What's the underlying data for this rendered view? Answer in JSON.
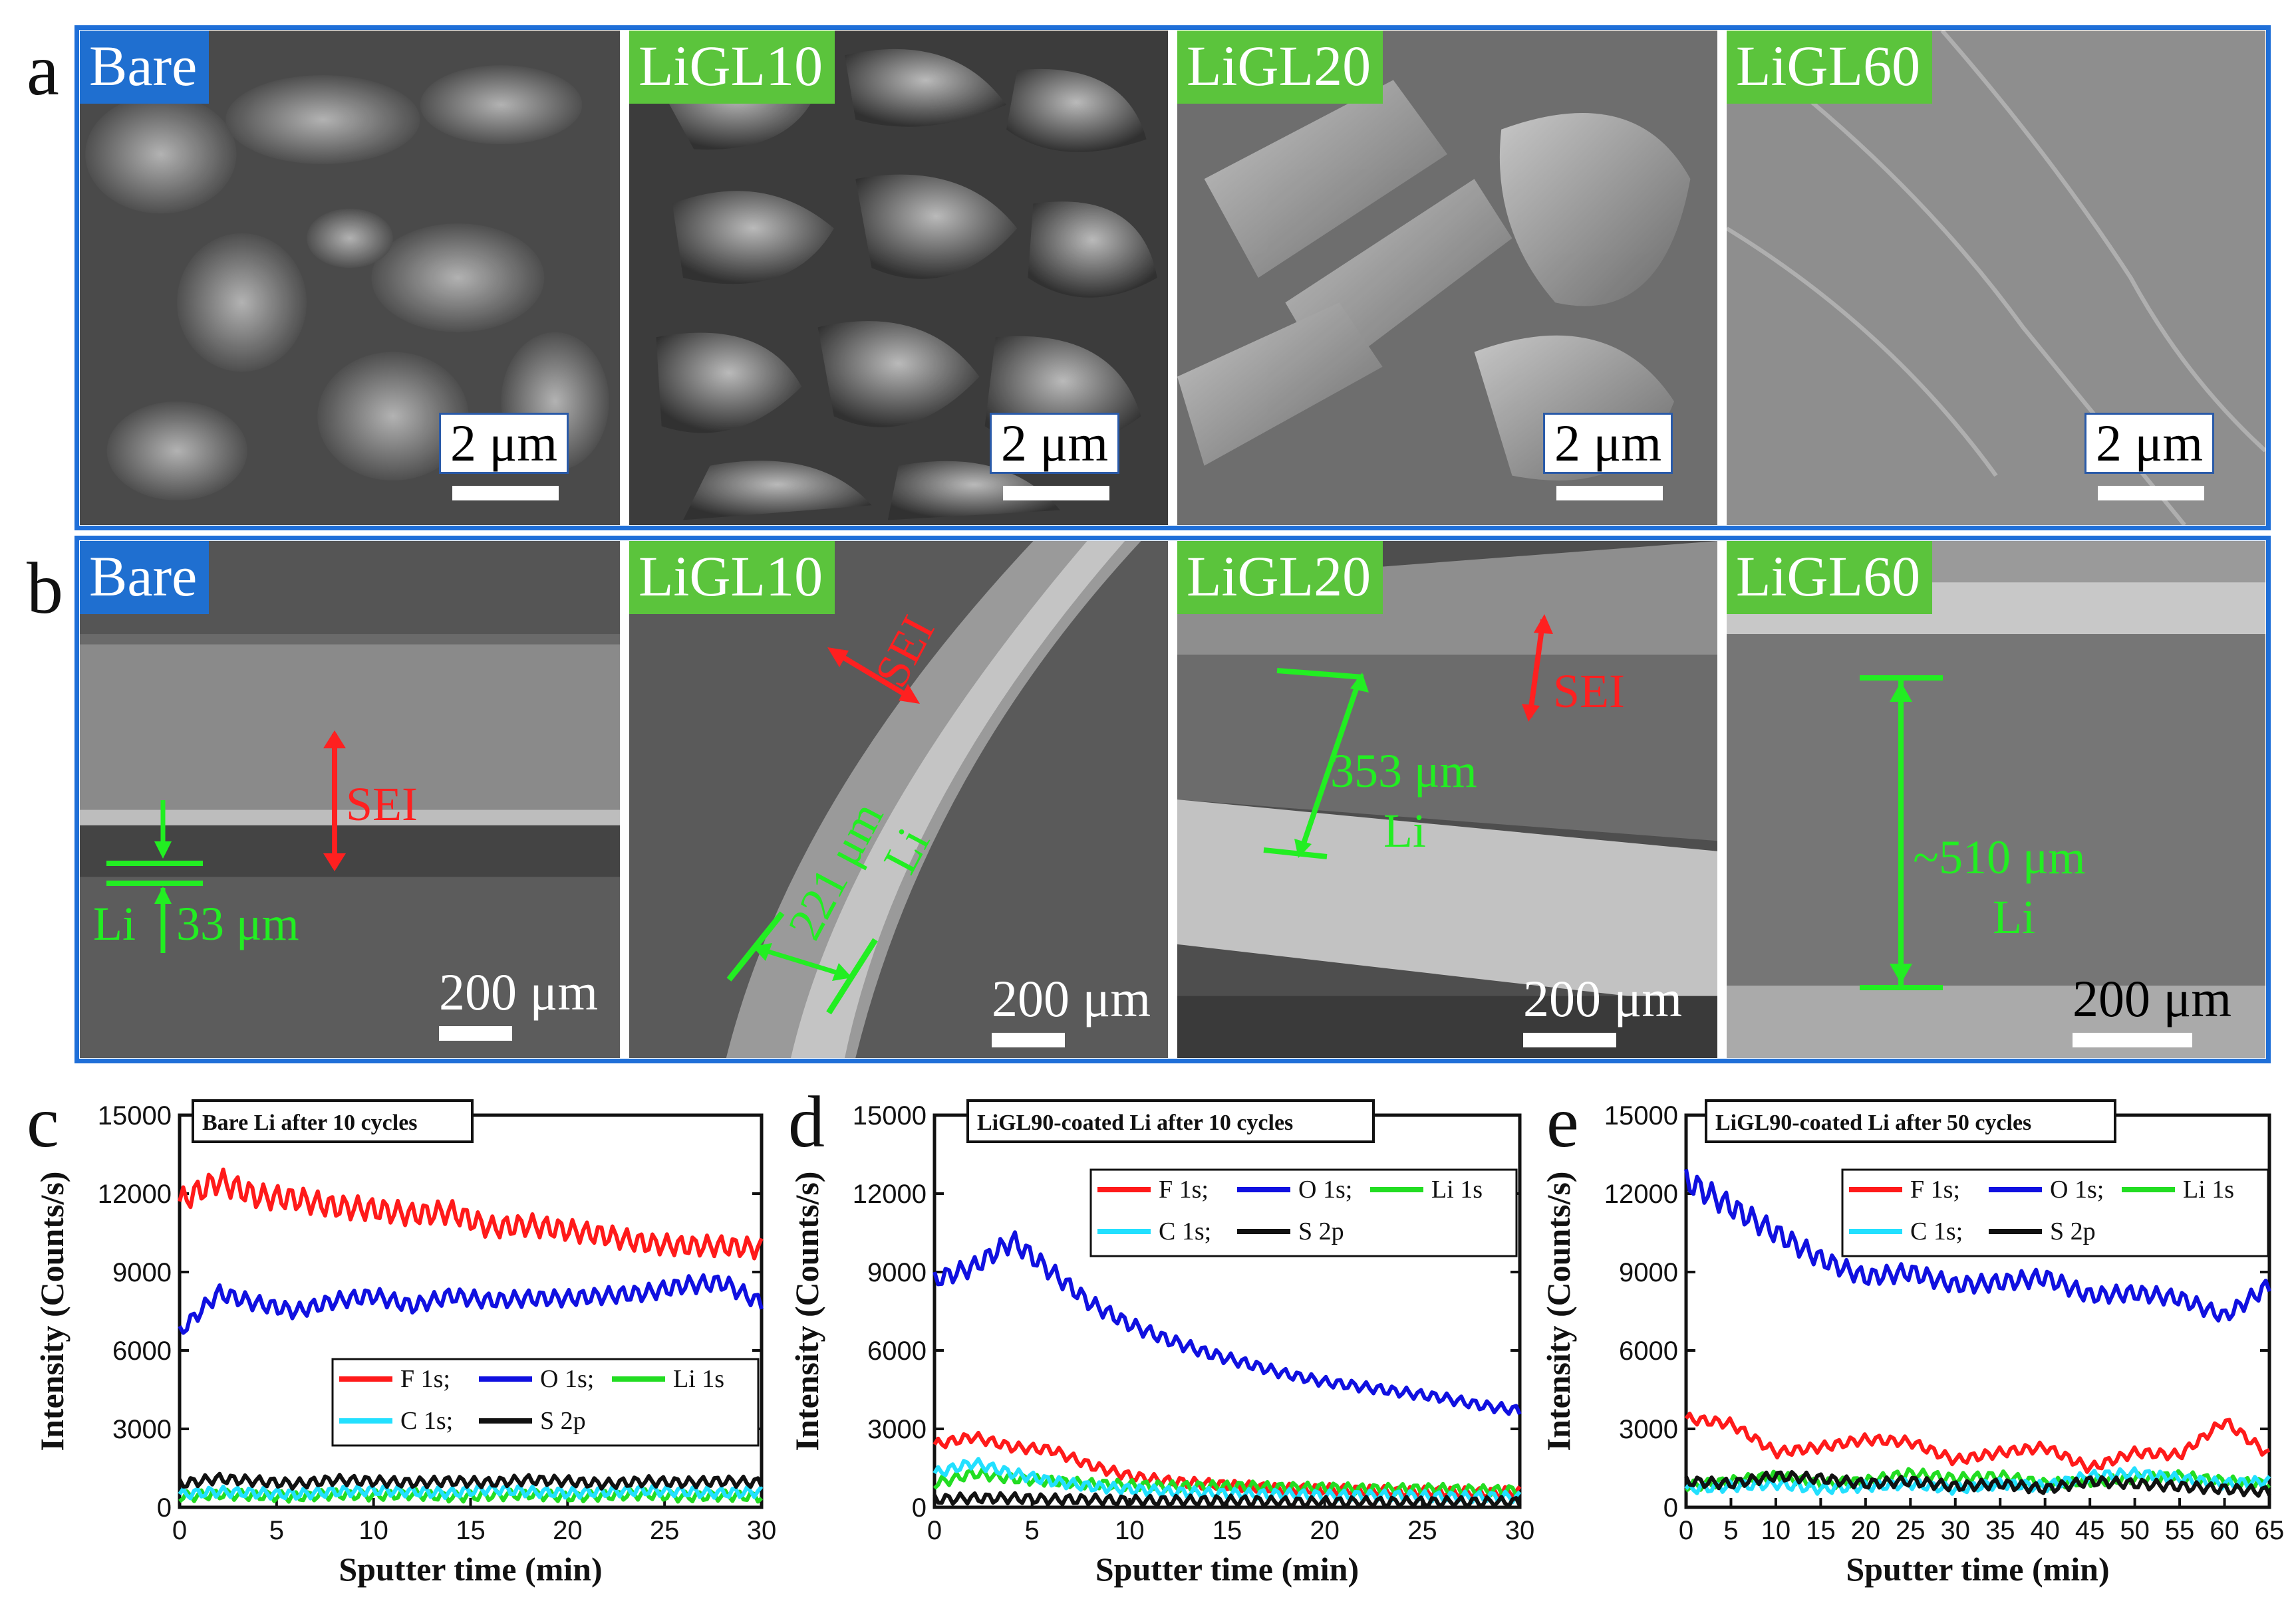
{
  "panels": {
    "a": {
      "letter": "a",
      "images": [
        {
          "tag": "Bare",
          "tag_color": "blue",
          "scale": "2 μm"
        },
        {
          "tag": "LiGL10",
          "tag_color": "green",
          "scale": "2 μm"
        },
        {
          "tag": "LiGL20",
          "tag_color": "green",
          "scale": "2 μm"
        },
        {
          "tag": "LiGL60",
          "tag_color": "green",
          "scale": "2 μm"
        }
      ]
    },
    "b": {
      "letter": "b",
      "images": [
        {
          "tag": "Bare",
          "tag_color": "blue",
          "scale": "200 μm",
          "annotations": [
            "SEI",
            "Li",
            "33 μm"
          ]
        },
        {
          "tag": "LiGL10",
          "tag_color": "green",
          "scale": "200 μm",
          "annotations": [
            "SEI",
            "221 μm",
            "Li"
          ]
        },
        {
          "tag": "LiGL20",
          "tag_color": "green",
          "scale": "200 μm",
          "annotations": [
            "SEI",
            "353 μm",
            "Li"
          ]
        },
        {
          "tag": "LiGL60",
          "tag_color": "green",
          "scale": "200 μm",
          "annotations": [
            "~510 μm",
            "Li"
          ]
        }
      ]
    }
  },
  "colors": {
    "frame": "#1f6fd8",
    "tag_blue": "#1f6fd0",
    "tag_green": "#5bc43c",
    "sei": "#ff2020",
    "li": "#22ee22",
    "F": "#ff1a1a",
    "O": "#1010e0",
    "Li": "#22dd22",
    "C": "#22e0ff",
    "S": "#111111"
  },
  "legend": {
    "entries": [
      "F 1s;",
      "O 1s;",
      "Li 1s",
      "C 1s;",
      "S 2p"
    ]
  },
  "chart_data": [
    {
      "letter": "c",
      "type": "line",
      "title": "Bare Li after 10 cycles",
      "xlabel": "Sputter time (min)",
      "ylabel": "Intensity (Counts/s)",
      "xlim": [
        0,
        30
      ],
      "ylim": [
        0,
        15000
      ],
      "xticks": [
        0,
        5,
        10,
        15,
        20,
        25,
        30
      ],
      "yticks": [
        0,
        3000,
        6000,
        9000,
        12000,
        15000
      ],
      "x": [
        0,
        2,
        4,
        6,
        8,
        10,
        12,
        14,
        16,
        18,
        20,
        22,
        24,
        26,
        28,
        30
      ],
      "series": [
        {
          "name": "F 1s",
          "values": [
            11700,
            12500,
            11900,
            11800,
            11500,
            11400,
            11200,
            11300,
            10700,
            10800,
            10600,
            10400,
            10100,
            10000,
            10000,
            9900
          ]
        },
        {
          "name": "O 1s",
          "values": [
            6700,
            8200,
            7800,
            7500,
            7900,
            8100,
            7700,
            8100,
            7900,
            8000,
            8000,
            8100,
            8200,
            8500,
            8600,
            7800
          ]
        },
        {
          "name": "Li 1s",
          "values": [
            400,
            500,
            450,
            400,
            500,
            450,
            500,
            400,
            450,
            500,
            400,
            450,
            500,
            400,
            450,
            400
          ]
        },
        {
          "name": "C 1s",
          "values": [
            500,
            600,
            550,
            500,
            600,
            650,
            600,
            550,
            700,
            600,
            550,
            600,
            650,
            600,
            550,
            600
          ]
        },
        {
          "name": "S 2p",
          "values": [
            900,
            1100,
            1000,
            900,
            1050,
            1000,
            950,
            1000,
            950,
            1050,
            1000,
            900,
            1000,
            950,
            1000,
            950
          ]
        }
      ]
    },
    {
      "letter": "d",
      "type": "line",
      "title": "LiGL90-coated Li after 10 cycles",
      "xlabel": "Sputter time (min)",
      "ylabel": "Intensity (Counts/s)",
      "xlim": [
        0,
        30
      ],
      "ylim": [
        0,
        15000
      ],
      "xticks": [
        0,
        5,
        10,
        15,
        20,
        25,
        30
      ],
      "yticks": [
        0,
        3000,
        6000,
        9000,
        12000,
        15000
      ],
      "x": [
        0,
        2,
        4,
        6,
        8,
        10,
        12,
        14,
        16,
        18,
        20,
        22,
        24,
        26,
        28,
        30
      ],
      "series": [
        {
          "name": "F 1s",
          "values": [
            2400,
            2700,
            2300,
            2200,
            1600,
            1200,
            1000,
            900,
            800,
            700,
            700,
            650,
            600,
            600,
            550,
            600
          ]
        },
        {
          "name": "O 1s",
          "values": [
            8700,
            9200,
            10200,
            9000,
            7800,
            7000,
            6400,
            5900,
            5500,
            5100,
            4800,
            4600,
            4400,
            4200,
            3900,
            3700
          ]
        },
        {
          "name": "Li 1s",
          "values": [
            900,
            1300,
            1100,
            1000,
            900,
            850,
            800,
            800,
            800,
            750,
            750,
            700,
            700,
            700,
            650,
            650
          ]
        },
        {
          "name": "C 1s",
          "values": [
            1300,
            1700,
            1300,
            1000,
            800,
            700,
            600,
            550,
            500,
            500,
            450,
            450,
            450,
            400,
            400,
            400
          ]
        },
        {
          "name": "S 2p",
          "values": [
            300,
            350,
            350,
            300,
            300,
            250,
            250,
            250,
            250,
            200,
            200,
            200,
            200,
            200,
            200,
            200
          ]
        }
      ]
    },
    {
      "letter": "e",
      "type": "line",
      "title": "LiGL90-coated Li after 50 cycles",
      "xlabel": "Sputter time (min)",
      "ylabel": "Intensity (Counts/s)",
      "xlim": [
        0,
        65
      ],
      "ylim": [
        0,
        15000
      ],
      "xticks": [
        0,
        5,
        10,
        15,
        20,
        25,
        30,
        35,
        40,
        45,
        50,
        55,
        60,
        65
      ],
      "yticks": [
        0,
        3000,
        6000,
        9000,
        12000,
        15000
      ],
      "x": [
        0,
        5,
        10,
        15,
        20,
        25,
        30,
        35,
        40,
        45,
        50,
        55,
        60,
        65
      ],
      "series": [
        {
          "name": "F 1s",
          "values": [
            3400,
            3200,
            2100,
            2300,
            2600,
            2500,
            1800,
            2100,
            2300,
            1500,
            2100,
            2000,
            3300,
            2000
          ]
        },
        {
          "name": "O 1s",
          "values": [
            12500,
            11500,
            10500,
            9500,
            8800,
            9000,
            8500,
            8600,
            8800,
            8100,
            8200,
            8000,
            7300,
            8500
          ]
        },
        {
          "name": "Li 1s",
          "values": [
            800,
            1000,
            1200,
            900,
            1000,
            1300,
            1100,
            1200,
            900,
            1000,
            1100,
            1200,
            1000,
            900
          ]
        },
        {
          "name": "C 1s",
          "values": [
            700,
            800,
            900,
            700,
            800,
            900,
            700,
            900,
            800,
            1200,
            1300,
            1100,
            900,
            1000
          ]
        },
        {
          "name": "S 2p",
          "values": [
            1000,
            900,
            1200,
            1100,
            900,
            1000,
            800,
            900,
            700,
            1000,
            900,
            800,
            700,
            600
          ]
        }
      ]
    }
  ]
}
